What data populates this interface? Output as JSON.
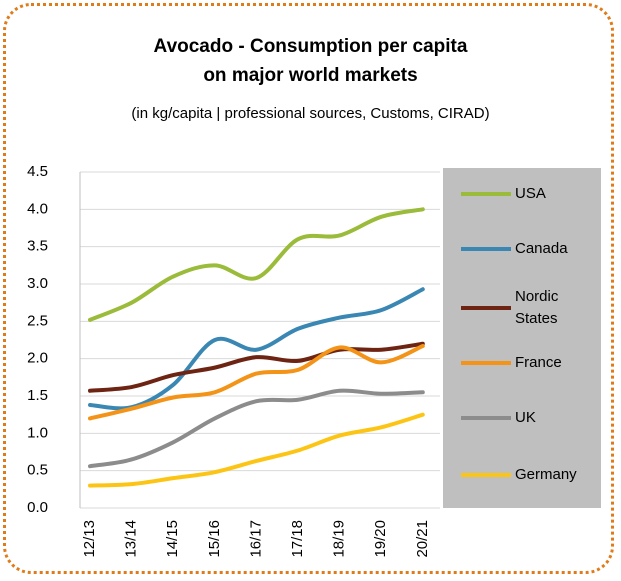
{
  "chart_data": {
    "type": "line",
    "title": "Avocado - Consumption per capita\non major world markets",
    "subtitle": "(in kg/capita | professional sources, Customs, CIRAD)",
    "categories": [
      "12/13",
      "13/14",
      "14/15",
      "15/16",
      "16/17",
      "17/18",
      "18/19",
      "19/20",
      "20/21"
    ],
    "series": [
      {
        "name": "USA",
        "color": "#9bbb3b",
        "values": [
          2.52,
          2.75,
          3.1,
          3.25,
          3.08,
          3.6,
          3.65,
          3.9,
          4.0
        ]
      },
      {
        "name": "Canada",
        "color": "#3a87b4",
        "values": [
          1.38,
          1.35,
          1.65,
          2.25,
          2.12,
          2.4,
          2.55,
          2.65,
          2.93
        ]
      },
      {
        "name": "Nordic States",
        "color": "#6e2412",
        "values": [
          1.57,
          1.62,
          1.78,
          1.88,
          2.02,
          1.97,
          2.12,
          2.12,
          2.2
        ]
      },
      {
        "name": "France",
        "color": "#f39317",
        "values": [
          1.2,
          1.33,
          1.48,
          1.55,
          1.8,
          1.85,
          2.15,
          1.95,
          2.17
        ]
      },
      {
        "name": "UK",
        "color": "#8c8c8c",
        "values": [
          0.56,
          0.65,
          0.88,
          1.2,
          1.43,
          1.45,
          1.57,
          1.53,
          1.55
        ]
      },
      {
        "name": "Germany",
        "color": "#fcc516",
        "values": [
          0.3,
          0.32,
          0.4,
          0.48,
          0.63,
          0.77,
          0.97,
          1.08,
          1.25
        ]
      }
    ],
    "ylim": [
      0,
      4.5
    ],
    "yticks": [
      {
        "value": 0,
        "label": "0.0"
      },
      0.5,
      {
        "value": 1,
        "label": "1.0"
      },
      1.5,
      {
        "value": 2,
        "label": "2.0"
      },
      2.5,
      {
        "value": 3,
        "label": "3.0"
      },
      3.5,
      {
        "value": 4,
        "label": "4.0"
      },
      4.5
    ],
    "grid": true,
    "legend": "right"
  }
}
